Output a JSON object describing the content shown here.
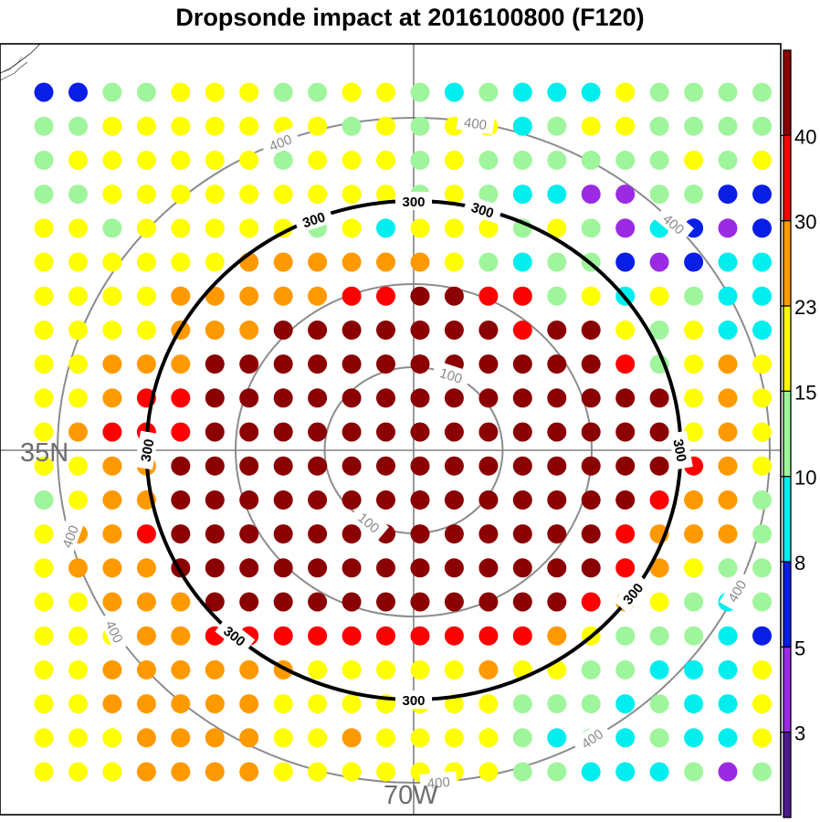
{
  "chart_data": {
    "type": "heatmap",
    "title": "Dropsonde impact at 2016100800 (F120)",
    "lat_label": "35N",
    "lon_label": "70W",
    "range_contours": [
      {
        "value": 100,
        "label": "100",
        "highlight": false
      },
      {
        "value": 200,
        "label": "",
        "highlight": false
      },
      {
        "value": 300,
        "label": "300",
        "highlight": true
      },
      {
        "value": 400,
        "label": "400",
        "highlight": false
      }
    ],
    "colorbar": {
      "tick_labels": [
        "3",
        "5",
        "8",
        "10",
        "15",
        "23",
        "30",
        "40"
      ],
      "bins": [
        {
          "color": "#4b1a8c"
        },
        {
          "color": "#9a2be3"
        },
        {
          "color": "#0a1fe6"
        },
        {
          "color": "#00eeee"
        },
        {
          "color": "#9ff59b"
        },
        {
          "color": "#ffff00"
        },
        {
          "color": "#ff9900"
        },
        {
          "color": "#ff0000"
        },
        {
          "color": "#8b0000"
        }
      ]
    },
    "legend": "right",
    "grid": [
      "2244555445543433354444",
      "4455555554545534554444",
      "4555555455545444444545",
      "4455555555545433114422",
      "5545555545355545413212",
      "5555556666665434421233",
      "5555666667788774535433",
      "5555666888888878854533",
      "5566688888888888874565",
      "5567788888888888888565",
      "5677788888888888888565",
      "5566888888888888888765",
      "4566888888888888887664",
      "5667888888888888876664",
      "5666888888888888876544",
      "5566688888888888765434",
      "5556677777777776544432",
      "5566666655555655443335",
      "5566666555555544434335",
      "5556666556555543434335",
      "5556666555555544333414"
    ]
  }
}
